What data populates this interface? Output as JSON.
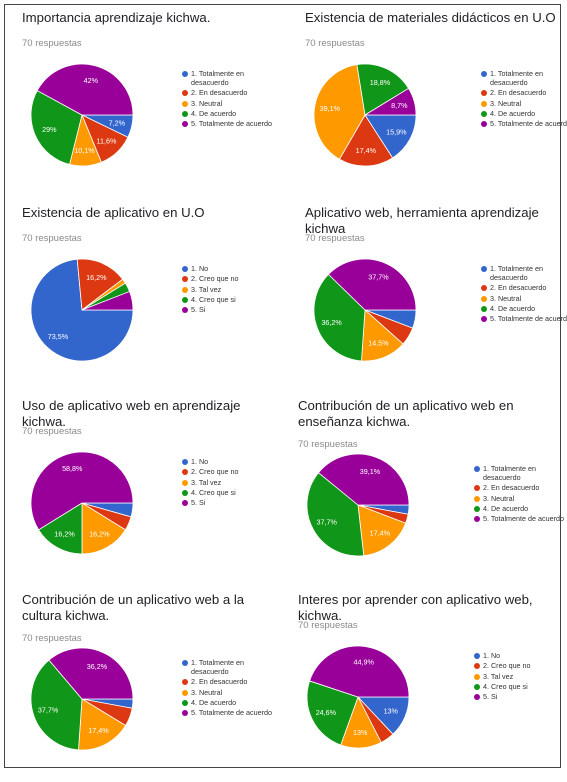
{
  "colors": {
    "blue": "#3366CC",
    "red": "#DC3912",
    "orange": "#FF9900",
    "green": "#109618",
    "purple": "#990099"
  },
  "chart_data": [
    {
      "type": "pie",
      "title": "Importancia aprendizaje kichwa.",
      "subtitle": "70 respuestas",
      "categories": [
        "1. Totalmente en desacuerdo",
        "2. En desacuerdo",
        "3. Neutral",
        "4. De acuerdo",
        "5. Totalmente de acuerdo"
      ],
      "values": [
        7.2,
        11.6,
        10.1,
        29,
        42
      ],
      "data_labels": [
        "7,2%",
        "11,6%",
        "10,1%",
        "29%",
        "42%"
      ],
      "legend": "right"
    },
    {
      "type": "pie",
      "title": "Existencia de materiales didácticos en U.O",
      "subtitle": "70 respuestas",
      "categories": [
        "1. Totalmente en desacuerdo",
        "2. En desacuerdo",
        "3. Neutral",
        "4. De acuerdo",
        "5. Totalmente de acuerdo"
      ],
      "values": [
        15.9,
        17.4,
        39.1,
        18.8,
        8.7
      ],
      "data_labels": [
        "15,9%",
        "17,4%",
        "39,1%",
        "18,8%",
        "8,7%"
      ],
      "legend": "right"
    },
    {
      "type": "pie",
      "title": "Existencia de aplicativo en U.O",
      "subtitle": "70 respuestas",
      "categories": [
        "1. No",
        "2. Creo que no",
        "3. Tal vez",
        "4. Creo que si",
        "5. Si"
      ],
      "values": [
        73.5,
        16.2,
        1.5,
        2.9,
        5.9
      ],
      "data_labels": [
        "73,5%",
        "16,2%",
        "",
        "",
        ""
      ],
      "legend": "right"
    },
    {
      "type": "pie",
      "title": "Aplicativo web, herramienta aprendizaje kichwa",
      "subtitle": "70 respuestas",
      "categories": [
        "1. Totalmente en desacuerdo",
        "2. En desacuerdo",
        "3. Neutral",
        "4. De acuerdo",
        "5. Totalmente de acuerdo"
      ],
      "values": [
        5.8,
        5.8,
        14.5,
        36.2,
        37.7
      ],
      "data_labels": [
        "",
        "",
        "14,5%",
        "36,2%",
        "37,7%"
      ],
      "legend": "right"
    },
    {
      "type": "pie",
      "title": "Uso de aplicativo web en aprendizaje kichwa.",
      "subtitle": "70 respuestas",
      "categories": [
        "1. No",
        "2. Creo que no",
        "3. Tal vez",
        "4. Creo que si",
        "5. Si"
      ],
      "values": [
        4.4,
        4.4,
        16.2,
        16.2,
        58.8
      ],
      "data_labels": [
        "",
        "",
        "16,2%",
        "16,2%",
        "58,8%"
      ],
      "legend": "right"
    },
    {
      "type": "pie",
      "title": "Contribución de un aplicativo web en enseñanza kichwa.",
      "subtitle": "70 respuestas",
      "categories": [
        "1. Totalmente en desacuerdo",
        "2. En desacuerdo",
        "3. Neutral",
        "4. De acuerdo",
        "5. Totalmente de acuerdo"
      ],
      "values": [
        2.9,
        2.9,
        17.4,
        37.7,
        39.1
      ],
      "data_labels": [
        "",
        "",
        "17,4%",
        "37,7%",
        "39,1%"
      ],
      "legend": "right"
    },
    {
      "type": "pie",
      "title": "Contribución de un aplicativo web a la cultura kichwa.",
      "subtitle": "70 respuestas",
      "categories": [
        "1. Totalmente en desacuerdo",
        "2. En desacuerdo",
        "3. Neutral",
        "4. De acuerdo",
        "5. Totalmente de acuerdo"
      ],
      "values": [
        2.9,
        5.8,
        17.4,
        37.7,
        36.2
      ],
      "data_labels": [
        "",
        "",
        "17,4%",
        "37,7%",
        "36,2%"
      ],
      "legend": "right"
    },
    {
      "type": "pie",
      "title": "Interes por aprender con aplicativo web, kichwa.",
      "subtitle": "70 respuestas",
      "categories": [
        "1. No",
        "2. Creo que no",
        "3. Tal vez",
        "4. Creo que si",
        "5. Si"
      ],
      "values": [
        13,
        4.5,
        13,
        24.6,
        44.9
      ],
      "data_labels": [
        "13%",
        "",
        "13%",
        "24,6%",
        "44,9%"
      ],
      "legend": "right"
    }
  ]
}
